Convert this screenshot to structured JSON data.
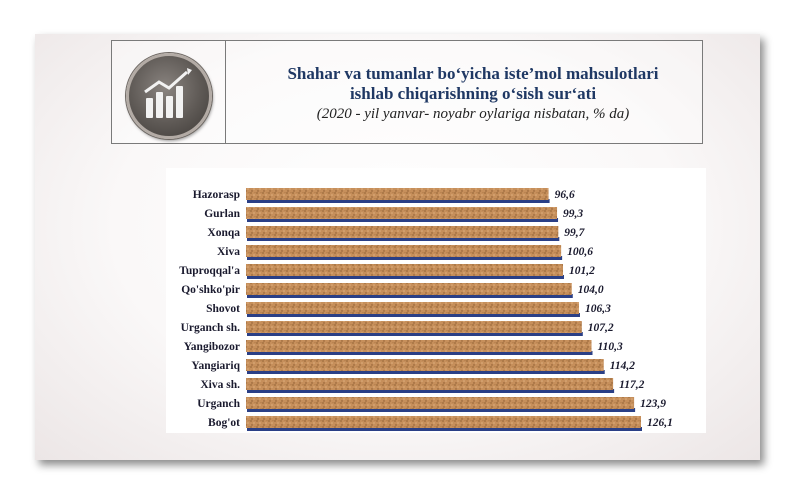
{
  "header": {
    "title_line1": "Shahar va tumanlar bo‘yicha iste’mol mahsulotlari",
    "title_line2": "ishlab chiqarishning o‘sish sur‘ati",
    "subtitle": "(2020 - yil yanvar- noyabr oylariga nisbatan, % da)",
    "logo_icon": "bar-chart-growth-icon"
  },
  "colors": {
    "title": "#1f3864",
    "bar_fill": "#c68f5b",
    "bar_shadow": "#2a3f86",
    "label": "#1a1a2e"
  },
  "chart_data": {
    "type": "bar",
    "orientation": "horizontal",
    "categories": [
      "Hazorasp",
      "Gurlan",
      "Xonqa",
      "Xiva",
      "Tuproqqal'a",
      "Qo'shko'pir",
      "Shovot",
      "Urganch sh.",
      "Yangibozor",
      "Yangiariq",
      "Xiva sh.",
      "Urganch",
      "Bog'ot"
    ],
    "values": [
      96.6,
      99.3,
      99.7,
      100.6,
      101.2,
      104.0,
      106.3,
      107.2,
      110.3,
      114.2,
      117.2,
      123.9,
      126.1
    ],
    "value_labels": [
      "96,6",
      "99,3",
      "99,7",
      "100,6",
      "101,2",
      "104,0",
      "106,3",
      "107,2",
      "110,3",
      "114,2",
      "117,2",
      "123,9",
      "126,1"
    ],
    "title": "",
    "xlabel": "",
    "ylabel": "",
    "xlim": [
      0,
      126.1
    ],
    "grid": false,
    "legend": "none"
  }
}
